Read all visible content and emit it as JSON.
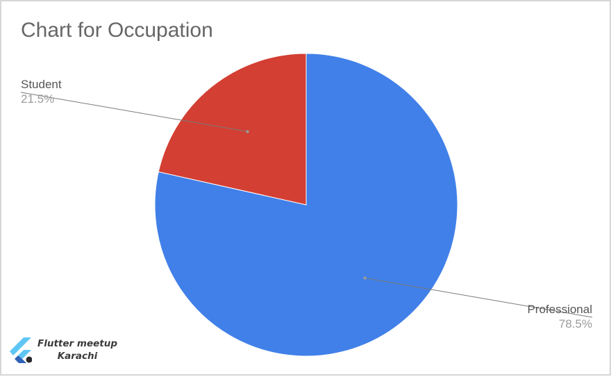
{
  "chart_data": {
    "type": "pie",
    "title": "Chart for Occupation",
    "slices": [
      {
        "label": "Professional",
        "value": 78.5,
        "display": "78.5%",
        "color": "#4180e8"
      },
      {
        "label": "Student",
        "value": 21.5,
        "display": "21.5%",
        "color": "#d33f33"
      }
    ],
    "start_angle": "12 o'clock",
    "direction": "clockwise",
    "legend": "none",
    "label_style": "leader-lines"
  },
  "branding": {
    "line1": "Flutter meetup",
    "line2": "Karachi"
  }
}
